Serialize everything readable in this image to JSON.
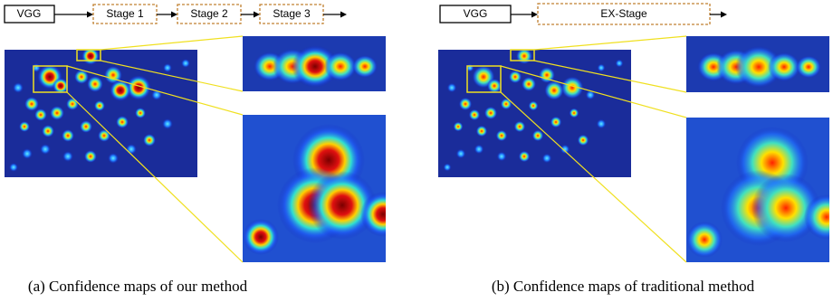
{
  "panels": [
    {
      "pipeline": [
        "VGG",
        "Stage 1",
        "Stage 2",
        "Stage 3"
      ],
      "caption": "(a) Confidence maps of our method"
    },
    {
      "pipeline": [
        "VGG",
        "EX-Stage"
      ],
      "caption": "(b) Confidence maps of traditional method"
    }
  ]
}
